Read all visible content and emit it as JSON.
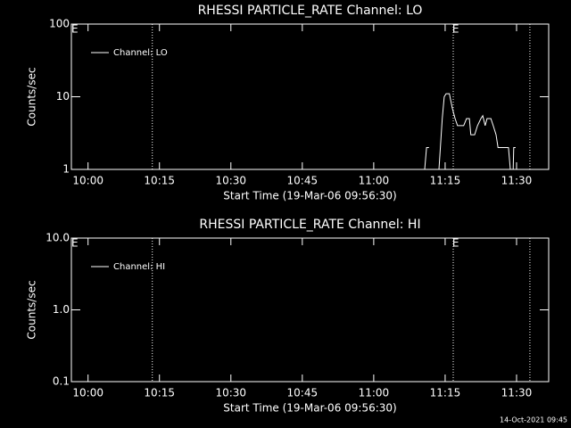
{
  "chart_data": [
    {
      "type": "line",
      "title": "RHESSI PARTICLE_RATE Channel: LO",
      "xlabel": "Start Time (19-Mar-06 09:56:30)",
      "ylabel": "Counts/sec",
      "log_y": true,
      "ylim": [
        1,
        100
      ],
      "yticks": [
        1,
        10,
        100
      ],
      "xlim": [
        596.5,
        696.75
      ],
      "xticks": [
        {
          "value": 600,
          "label": "10:00"
        },
        {
          "value": 615,
          "label": "10:15"
        },
        {
          "value": 630,
          "label": "10:30"
        },
        {
          "value": 645,
          "label": "10:45"
        },
        {
          "value": 660,
          "label": "11:00"
        },
        {
          "value": 675,
          "label": "11:15"
        },
        {
          "value": 690,
          "label": "11:30"
        }
      ],
      "event_lines": [
        613.5,
        676.7,
        692.8
      ],
      "markers": [
        {
          "x": 597.2,
          "label": "E"
        },
        {
          "x": 677.2,
          "label": "E"
        }
      ],
      "series": [
        {
          "name": "Channel: LO",
          "color": "#ffffff",
          "x": [
            670.7,
            671.1,
            671.6,
            672.4,
            673.1,
            673.7,
            674.4,
            674.8,
            675.2,
            675.9,
            676.5,
            677.1,
            677.6,
            678.9,
            679.5,
            680.1,
            680.4,
            681.2,
            681.8,
            682.5,
            682.9,
            683.4,
            683.8,
            684.6,
            685.1,
            685.7,
            686.1,
            688.3,
            688.7,
            688.9,
            689.3,
            689.4,
            689.8
          ],
          "values": [
            1,
            2,
            2,
            null,
            1,
            1,
            5,
            10,
            11,
            11,
            7,
            5,
            4,
            4,
            5,
            5,
            3,
            3,
            4,
            5,
            5.5,
            4,
            5,
            5,
            4,
            3,
            2,
            2,
            1,
            null,
            1,
            2,
            2
          ]
        }
      ]
    },
    {
      "type": "line",
      "title": "RHESSI PARTICLE_RATE Channel: HI",
      "xlabel": "Start Time (19-Mar-06 09:56:30)",
      "ylabel": "Counts/sec",
      "log_y": true,
      "ylim": [
        0.1,
        10
      ],
      "yticks": [
        0.1,
        {
          "value": 1,
          "label": "1.0"
        },
        {
          "value": 10,
          "label": "10.0"
        }
      ],
      "xlim": [
        596.5,
        696.75
      ],
      "xticks": [
        {
          "value": 600,
          "label": "10:00"
        },
        {
          "value": 615,
          "label": "10:15"
        },
        {
          "value": 630,
          "label": "10:30"
        },
        {
          "value": 645,
          "label": "10:45"
        },
        {
          "value": 660,
          "label": "11:00"
        },
        {
          "value": 675,
          "label": "11:15"
        },
        {
          "value": 690,
          "label": "11:30"
        }
      ],
      "event_lines": [
        613.5,
        676.7,
        692.8
      ],
      "markers": [
        {
          "x": 597.2,
          "label": "E"
        },
        {
          "x": 677.2,
          "label": "E"
        }
      ],
      "series": [
        {
          "name": "Channel: HI",
          "color": "#ffffff",
          "x": [],
          "values": []
        }
      ]
    }
  ],
  "footer": "14-Oct-2021 09:45"
}
